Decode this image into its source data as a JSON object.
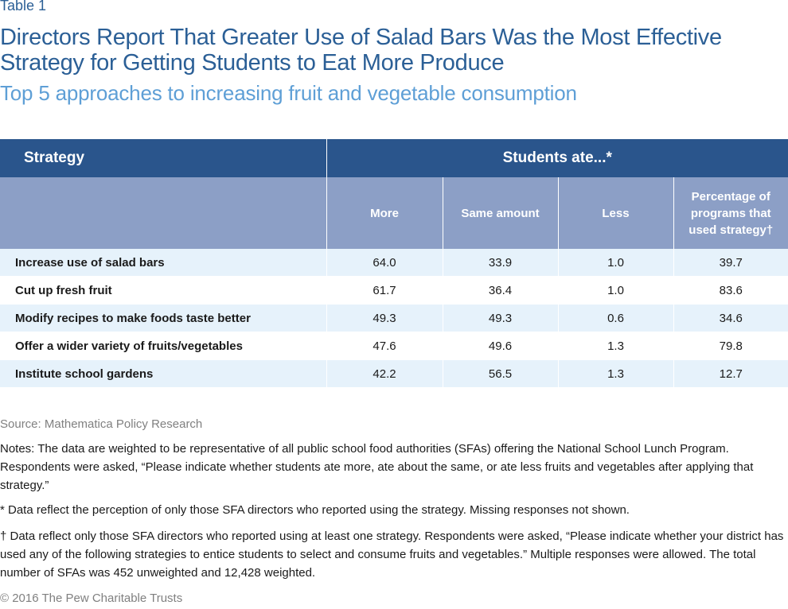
{
  "header": {
    "label": "Table 1",
    "title": "Directors Report That Greater Use of Salad Bars Was the Most Effective Strategy for Getting Students to Eat More Produce",
    "subtitle": "Top 5 approaches to increasing fruit and vegetable consumption"
  },
  "table": {
    "strategy_header": "Strategy",
    "group_header": "Students ate...*",
    "columns": [
      "More",
      "Same amount",
      "Less",
      "Percentage of programs that used strategy†"
    ],
    "rows": [
      {
        "strategy": "Increase use of salad bars",
        "more": "64.0",
        "same": "33.9",
        "less": "1.0",
        "pct": "39.7"
      },
      {
        "strategy": "Cut up fresh fruit",
        "more": "61.7",
        "same": "36.4",
        "less": "1.0",
        "pct": "83.6"
      },
      {
        "strategy": "Modify recipes to make foods taste better",
        "more": "49.3",
        "same": "49.3",
        "less": "0.6",
        "pct": "34.6"
      },
      {
        "strategy": "Offer a wider variety of fruits/vegetables",
        "more": "47.6",
        "same": "49.6",
        "less": "1.3",
        "pct": "79.8"
      },
      {
        "strategy": "Institute school gardens",
        "more": "42.2",
        "same": "56.5",
        "less": "1.3",
        "pct": "12.7"
      }
    ]
  },
  "footer": {
    "source": "Source: Mathematica Policy Research",
    "notes": "Notes: The data are weighted to be representative of all public school food authorities (SFAs) offering the National School Lunch Program. Respondents were asked, “Please indicate whether students ate more, ate about the same, or ate less fruits and vegetables after applying that strategy.”",
    "asterisk": "* Data reflect the perception of only those SFA directors who reported using the strategy. Missing responses not shown.",
    "dagger": "† Data reflect only those SFA directors who reported using at least one strategy. Respondents were asked, “Please indicate whether your district has used any of the following strategies to entice students to select and consume fruits and vegetables.” Multiple responses were allowed. The total number of SFAs was 452 unweighted and 12,428 weighted.",
    "copyright": "© 2016 The Pew Charitable Trusts"
  }
}
